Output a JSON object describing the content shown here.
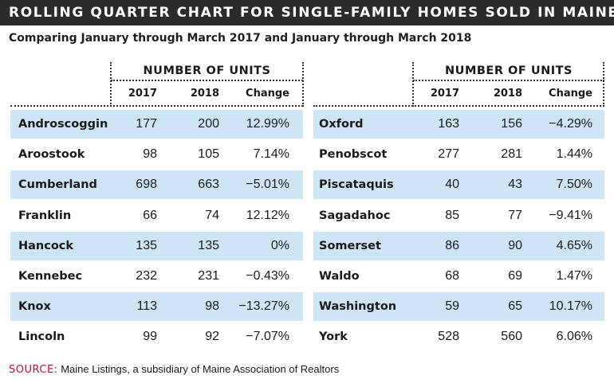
{
  "title": "ROLLING QUARTER CHART FOR SINGLE-FAMILY HOMES SOLD IN MAINE",
  "subtitle": "Comparing January through March 2017 and January through March 2018",
  "group_header": "NUMBER OF UNITS",
  "columns": [
    "2017",
    "2018",
    "Change"
  ],
  "source_label": "SOURCE:",
  "source_text": "Maine Listings, a subsidiary of Maine Association of Realtors",
  "colors": {
    "title_bg": "#2b2b2b",
    "row_shade": "#cde5f5",
    "source_label": "#c8102e"
  },
  "chart_data": {
    "type": "table",
    "title": "ROLLING QUARTER CHART FOR SINGLE-FAMILY HOMES SOLD IN MAINE",
    "subtitle": "Comparing January through March 2017 and January through March 2018",
    "columns": [
      "2017",
      "2018",
      "Change"
    ],
    "left": [
      {
        "county": "Androscoggin",
        "y2017": "177",
        "y2018": "200",
        "change": "12.99%"
      },
      {
        "county": "Aroostook",
        "y2017": "98",
        "y2018": "105",
        "change": "7.14%"
      },
      {
        "county": "Cumberland",
        "y2017": "698",
        "y2018": "663",
        "change": "−5.01%"
      },
      {
        "county": "Franklin",
        "y2017": "66",
        "y2018": "74",
        "change": "12.12%"
      },
      {
        "county": "Hancock",
        "y2017": "135",
        "y2018": "135",
        "change": "0%"
      },
      {
        "county": "Kennebec",
        "y2017": "232",
        "y2018": "231",
        "change": "−0.43%"
      },
      {
        "county": "Knox",
        "y2017": "113",
        "y2018": "98",
        "change": "−13.27%"
      },
      {
        "county": "Lincoln",
        "y2017": "99",
        "y2018": "92",
        "change": "−7.07%"
      }
    ],
    "right": [
      {
        "county": "Oxford",
        "y2017": "163",
        "y2018": "156",
        "change": "−4.29%"
      },
      {
        "county": "Penobscot",
        "y2017": "277",
        "y2018": "281",
        "change": "1.44%"
      },
      {
        "county": "Piscataquis",
        "y2017": "40",
        "y2018": "43",
        "change": "7.50%"
      },
      {
        "county": "Sagadahoc",
        "y2017": "85",
        "y2018": "77",
        "change": "−9.41%"
      },
      {
        "county": "Somerset",
        "y2017": "86",
        "y2018": "90",
        "change": "4.65%"
      },
      {
        "county": "Waldo",
        "y2017": "68",
        "y2018": "69",
        "change": "1.47%"
      },
      {
        "county": "Washington",
        "y2017": "59",
        "y2018": "65",
        "change": "10.17%"
      },
      {
        "county": "York",
        "y2017": "528",
        "y2018": "560",
        "change": "6.06%"
      }
    ]
  }
}
